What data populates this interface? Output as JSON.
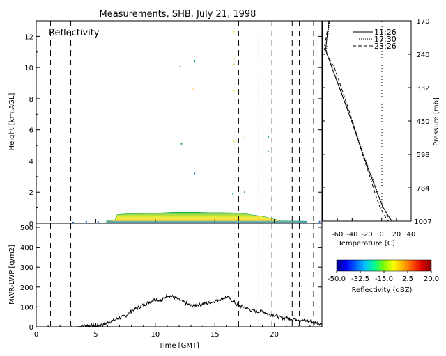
{
  "page_title": "Measurements, SHB, July 21, 1998",
  "chart_data": [
    {
      "id": "reflectivity",
      "type": "heatmap",
      "panel_label": "Reflectivity",
      "ylabel": "Height [km,AGL]",
      "xlim": [
        0,
        24
      ],
      "ylim": [
        0,
        13
      ],
      "yticks": [
        0,
        2,
        4,
        6,
        8,
        10,
        12
      ],
      "ytick_labels": [
        "0",
        "2",
        "4",
        "6",
        "8",
        "10",
        "12"
      ],
      "dashed_times": [
        1.2,
        2.9,
        17.0,
        18.7,
        19.8,
        20.4,
        21.5,
        22.1,
        23.3
      ],
      "boundary_layer": [
        {
          "x": 5.9,
          "top": 0.15
        },
        {
          "x": 6.6,
          "top": 0.2
        },
        {
          "x": 6.8,
          "top": 0.55
        },
        {
          "x": 7.5,
          "top": 0.6
        },
        {
          "x": 8.5,
          "top": 0.62
        },
        {
          "x": 9.5,
          "top": 0.63
        },
        {
          "x": 10.5,
          "top": 0.66
        },
        {
          "x": 11.5,
          "top": 0.7
        },
        {
          "x": 12.5,
          "top": 0.7
        },
        {
          "x": 13.5,
          "top": 0.7
        },
        {
          "x": 14.5,
          "top": 0.68
        },
        {
          "x": 15.5,
          "top": 0.68
        },
        {
          "x": 16.5,
          "top": 0.66
        },
        {
          "x": 17.3,
          "top": 0.65
        },
        {
          "x": 18.0,
          "top": 0.55
        },
        {
          "x": 19.0,
          "top": 0.45
        },
        {
          "x": 19.8,
          "top": 0.3
        },
        {
          "x": 20.5,
          "top": 0.15
        },
        {
          "x": 22.7,
          "top": 0.12
        }
      ],
      "speckles": [
        {
          "x": 12.1,
          "y": 10.05,
          "color": "#22bb33"
        },
        {
          "x": 13.3,
          "y": 10.4,
          "color": "#00aa44"
        },
        {
          "x": 16.6,
          "y": 12.3,
          "color": "#e8e84a"
        },
        {
          "x": 16.6,
          "y": 10.6,
          "color": "#e8e84a"
        },
        {
          "x": 16.6,
          "y": 10.2,
          "color": "#cccc55"
        },
        {
          "x": 16.6,
          "y": 8.5,
          "color": "#e8e84a"
        },
        {
          "x": 13.2,
          "y": 8.6,
          "color": "#ffd24a"
        },
        {
          "x": 12.2,
          "y": 5.1,
          "color": "#33aa44"
        },
        {
          "x": 16.6,
          "y": 5.25,
          "color": "#e8e84a"
        },
        {
          "x": 17.5,
          "y": 5.5,
          "color": "#cccc55"
        },
        {
          "x": 19.5,
          "y": 5.55,
          "color": "#2bb04a"
        },
        {
          "x": 19.5,
          "y": 4.6,
          "color": "#2bb04a"
        },
        {
          "x": 13.3,
          "y": 3.2,
          "color": "#1a66cc"
        },
        {
          "x": 16.5,
          "y": 1.9,
          "color": "#2bb04a"
        },
        {
          "x": 17.5,
          "y": 2.0,
          "color": "#2bb04a"
        },
        {
          "x": 19.8,
          "y": 1.5,
          "color": "#2bb04a"
        },
        {
          "x": 4.2,
          "y": 0.1,
          "color": "#1a66cc"
        },
        {
          "x": 3.1,
          "y": 0.05,
          "color": "#1a66cc"
        },
        {
          "x": 5.2,
          "y": 0.08,
          "color": "#1a66cc"
        },
        {
          "x": 23.8,
          "y": 0.1,
          "color": "#1a66cc"
        }
      ]
    },
    {
      "id": "lwp",
      "type": "line",
      "ylabel": "MWR-LWP [g/m2]",
      "xlabel": "Time [GMT]",
      "xlim": [
        0,
        24
      ],
      "ylim": [
        0,
        500
      ],
      "xticks": [
        0,
        5,
        10,
        15,
        20
      ],
      "xtick_labels": [
        "0",
        "5",
        "10",
        "15",
        "20"
      ],
      "yticks": [
        0,
        100,
        200,
        300,
        400,
        500
      ],
      "ytick_labels": [
        "0",
        "100",
        "200",
        "300",
        "400",
        "500"
      ],
      "dashed_times": [
        1.2,
        2.9,
        17.0,
        18.7,
        19.8,
        20.4,
        21.5,
        22.1,
        23.3
      ],
      "x": [
        3.5,
        4.0,
        4.5,
        5.0,
        5.5,
        6.0,
        6.5,
        7.0,
        7.5,
        8.0,
        8.5,
        9.0,
        9.5,
        10.0,
        10.5,
        11.0,
        11.5,
        12.0,
        12.5,
        13.0,
        13.5,
        14.0,
        14.5,
        15.0,
        15.5,
        16.0,
        16.5,
        17.0,
        17.5,
        18.0,
        18.5,
        19.0,
        19.5,
        20.0,
        20.5,
        21.0,
        21.5,
        22.0,
        22.5,
        23.0,
        23.5,
        24.0
      ],
      "y": [
        0,
        5,
        8,
        5,
        10,
        20,
        32,
        45,
        55,
        80,
        95,
        110,
        125,
        140,
        130,
        160,
        150,
        135,
        120,
        105,
        110,
        115,
        120,
        130,
        140,
        150,
        130,
        105,
        100,
        85,
        75,
        80,
        62,
        60,
        45,
        45,
        40,
        38,
        30,
        28,
        20,
        15
      ]
    },
    {
      "id": "temperature",
      "type": "line",
      "xlabel": "Temperature [C]",
      "ylabel": "Pressure [mb]",
      "xlim": [
        -80,
        40
      ],
      "xticks": [
        -60,
        -40,
        -20,
        0,
        20,
        40
      ],
      "xtick_labels": [
        "-60",
        "-40",
        "-20",
        "0",
        "20",
        "40"
      ],
      "pressure_ticks": [
        "170",
        "240",
        "332",
        "450",
        "598",
        "784",
        "1007"
      ],
      "series": [
        {
          "name": "11:26",
          "style": "solid",
          "points": [
            [
              -72,
              170
            ],
            [
              -73,
              185
            ],
            [
              -76,
              220
            ],
            [
              -67,
              260
            ],
            [
              -53,
              332
            ],
            [
              -40,
              420
            ],
            [
              -25,
              560
            ],
            [
              -14,
              680
            ],
            [
              -6,
              784
            ],
            [
              1,
              880
            ],
            [
              8,
              950
            ],
            [
              14,
              1007
            ]
          ]
        },
        {
          "name": "17:30",
          "style": "dotted",
          "points": [
            [
              -71,
              170
            ],
            [
              -72,
              185
            ],
            [
              -75,
              222
            ],
            [
              -66,
              262
            ],
            [
              -52,
              334
            ],
            [
              -39,
              422
            ],
            [
              -24,
              562
            ],
            [
              -13,
              682
            ],
            [
              -5,
              786
            ],
            [
              2,
              882
            ],
            [
              7,
              952
            ],
            [
              12,
              1007
            ]
          ]
        },
        {
          "name": "23:26",
          "style": "dashed",
          "points": [
            [
              -70,
              170
            ],
            [
              -74,
              188
            ],
            [
              -78,
              218
            ],
            [
              -64,
              258
            ],
            [
              -51,
              330
            ],
            [
              -39,
              418
            ],
            [
              -26,
              556
            ],
            [
              -16,
              676
            ],
            [
              -9,
              784
            ],
            [
              -3,
              880
            ],
            [
              3,
              950
            ],
            [
              9,
              1007
            ]
          ]
        }
      ]
    }
  ],
  "colorbar": {
    "title": "Reflectivity (dBZ)",
    "tick_labels": [
      "-50.0",
      "-32.5",
      "-15.0",
      "2.5",
      "20.0"
    ],
    "colors": [
      "#00007f",
      "#0000ff",
      "#0060ff",
      "#00c0ff",
      "#00ff90",
      "#80ff00",
      "#ffff00",
      "#ffb000",
      "#ff5000",
      "#e00000",
      "#800000"
    ]
  }
}
